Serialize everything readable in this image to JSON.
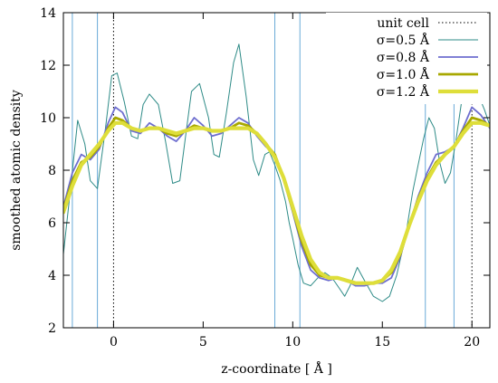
{
  "chart_data": {
    "type": "line",
    "xlabel": "z-coordinate [ Å ]",
    "ylabel": "smoothed atomic density",
    "xlim": [
      -2.8,
      21.0
    ],
    "ylim": [
      2,
      14
    ],
    "xticks": [
      0,
      5,
      10,
      15,
      20
    ],
    "yticks": [
      2,
      4,
      6,
      8,
      10,
      12,
      14
    ],
    "grid": false,
    "legend_position": "top-right",
    "unit_cell": {
      "name": "unit cell",
      "x": [
        0,
        20
      ],
      "color": "#000000"
    },
    "boundary_lines": {
      "x": [
        -2.3,
        -0.9,
        9.0,
        10.4,
        17.4,
        19.0
      ],
      "color": "#6aaad8"
    },
    "series": [
      {
        "name": "σ=0.5 Å",
        "color": "#2e8b87",
        "x": [
          -2.8,
          -2.4,
          -2.0,
          -1.6,
          -1.3,
          -0.9,
          -0.45,
          -0.1,
          0.2,
          0.6,
          1.0,
          1.35,
          1.65,
          2.0,
          2.5,
          2.9,
          3.3,
          3.7,
          4.0,
          4.35,
          4.8,
          5.3,
          5.6,
          5.9,
          6.3,
          6.7,
          7.0,
          7.4,
          7.8,
          8.1,
          8.45,
          8.7,
          9.0,
          9.3,
          9.6,
          9.8,
          10.0,
          10.3,
          10.6,
          11.0,
          11.4,
          11.8,
          12.2,
          12.6,
          12.9,
          13.2,
          13.6,
          14.0,
          14.5,
          15.0,
          15.4,
          15.8,
          16.3,
          16.7,
          17.0,
          17.3,
          17.6,
          17.9,
          18.2,
          18.5,
          18.8,
          19.1,
          19.4,
          19.7,
          20.0,
          20.4,
          20.7,
          21.0
        ],
        "y": [
          4.8,
          7.3,
          9.9,
          9.0,
          7.6,
          7.3,
          9.6,
          11.6,
          11.7,
          10.6,
          9.3,
          9.2,
          10.5,
          10.9,
          10.5,
          9.1,
          7.5,
          7.6,
          9.2,
          11.0,
          11.3,
          10.0,
          8.6,
          8.5,
          10.2,
          12.1,
          12.8,
          10.8,
          8.4,
          7.8,
          8.6,
          8.7,
          8.2,
          7.6,
          6.8,
          6.0,
          5.4,
          4.4,
          3.7,
          3.6,
          3.9,
          4.1,
          3.9,
          3.5,
          3.2,
          3.6,
          4.3,
          3.8,
          3.2,
          3.0,
          3.2,
          4.0,
          5.5,
          7.2,
          8.2,
          9.2,
          10.0,
          9.6,
          8.3,
          7.5,
          7.9,
          9.1,
          10.5,
          11.5,
          11.8,
          10.8,
          10.3,
          9.7
        ]
      },
      {
        "name": "σ=0.8 Å",
        "color": "#6e6ecf",
        "x": [
          -2.8,
          -2.3,
          -1.8,
          -1.3,
          -0.8,
          -0.3,
          0.1,
          0.5,
          1.0,
          1.5,
          2.0,
          2.5,
          3.0,
          3.5,
          4.0,
          4.5,
          5.0,
          5.5,
          6.0,
          6.5,
          7.0,
          7.5,
          8.0,
          8.5,
          9.0,
          9.5,
          10.0,
          10.5,
          11.0,
          11.5,
          12.0,
          12.5,
          13.0,
          13.5,
          14.0,
          14.5,
          15.0,
          15.5,
          16.0,
          16.5,
          17.0,
          17.5,
          18.0,
          18.5,
          19.0,
          19.5,
          20.0,
          20.5,
          21.0
        ],
        "y": [
          6.6,
          7.9,
          8.6,
          8.4,
          8.8,
          9.8,
          10.4,
          10.2,
          9.5,
          9.4,
          9.8,
          9.6,
          9.3,
          9.1,
          9.5,
          10.0,
          9.7,
          9.3,
          9.4,
          9.7,
          10.0,
          9.8,
          9.3,
          8.9,
          8.6,
          7.6,
          6.4,
          5.1,
          4.2,
          3.9,
          3.8,
          3.9,
          3.8,
          3.6,
          3.6,
          3.7,
          3.7,
          3.9,
          4.7,
          5.9,
          7.0,
          7.9,
          8.6,
          8.7,
          8.9,
          9.6,
          10.4,
          10.1,
          9.6
        ]
      },
      {
        "name": "σ=1.0 Å",
        "color": "#a8a800",
        "x": [
          -2.8,
          -2.3,
          -1.8,
          -1.3,
          -0.8,
          -0.3,
          0.1,
          0.5,
          1.0,
          1.5,
          2.0,
          2.5,
          3.0,
          3.5,
          4.0,
          4.5,
          5.0,
          5.5,
          6.0,
          6.5,
          7.0,
          7.5,
          8.0,
          8.5,
          9.0,
          9.5,
          10.0,
          10.5,
          11.0,
          11.5,
          12.0,
          12.5,
          13.0,
          13.5,
          14.0,
          14.5,
          15.0,
          15.5,
          16.0,
          16.5,
          17.0,
          17.5,
          18.0,
          18.5,
          19.0,
          19.5,
          20.0,
          20.5,
          21.0
        ],
        "y": [
          6.5,
          7.6,
          8.3,
          8.5,
          8.9,
          9.6,
          10.0,
          9.9,
          9.6,
          9.5,
          9.6,
          9.6,
          9.4,
          9.3,
          9.5,
          9.7,
          9.6,
          9.5,
          9.5,
          9.6,
          9.8,
          9.7,
          9.4,
          9.0,
          8.6,
          7.7,
          6.5,
          5.3,
          4.4,
          4.0,
          3.9,
          3.9,
          3.8,
          3.7,
          3.7,
          3.7,
          3.8,
          4.1,
          4.8,
          5.9,
          6.9,
          7.7,
          8.3,
          8.6,
          8.9,
          9.5,
          10.0,
          9.9,
          9.7
        ]
      },
      {
        "name": "σ=1.2 Å",
        "color": "#dede3a",
        "x": [
          -2.8,
          -2.3,
          -1.8,
          -1.3,
          -0.8,
          -0.3,
          0.1,
          0.5,
          1.0,
          1.5,
          2.0,
          2.5,
          3.0,
          3.5,
          4.0,
          4.5,
          5.0,
          5.5,
          6.0,
          6.5,
          7.0,
          7.5,
          8.0,
          8.5,
          9.0,
          9.5,
          10.0,
          10.5,
          11.0,
          11.5,
          12.0,
          12.5,
          13.0,
          13.5,
          14.0,
          14.5,
          15.0,
          15.5,
          16.0,
          16.5,
          17.0,
          17.5,
          18.0,
          18.5,
          19.0,
          19.5,
          20.0,
          20.5,
          21.0
        ],
        "y": [
          6.4,
          7.4,
          8.2,
          8.6,
          9.0,
          9.5,
          9.8,
          9.8,
          9.6,
          9.5,
          9.6,
          9.6,
          9.5,
          9.4,
          9.5,
          9.6,
          9.6,
          9.5,
          9.5,
          9.6,
          9.6,
          9.6,
          9.4,
          9.0,
          8.5,
          7.7,
          6.6,
          5.5,
          4.6,
          4.1,
          3.9,
          3.9,
          3.8,
          3.7,
          3.7,
          3.7,
          3.8,
          4.2,
          4.9,
          5.9,
          6.8,
          7.6,
          8.2,
          8.6,
          8.9,
          9.4,
          9.8,
          9.8,
          9.7
        ]
      }
    ]
  }
}
